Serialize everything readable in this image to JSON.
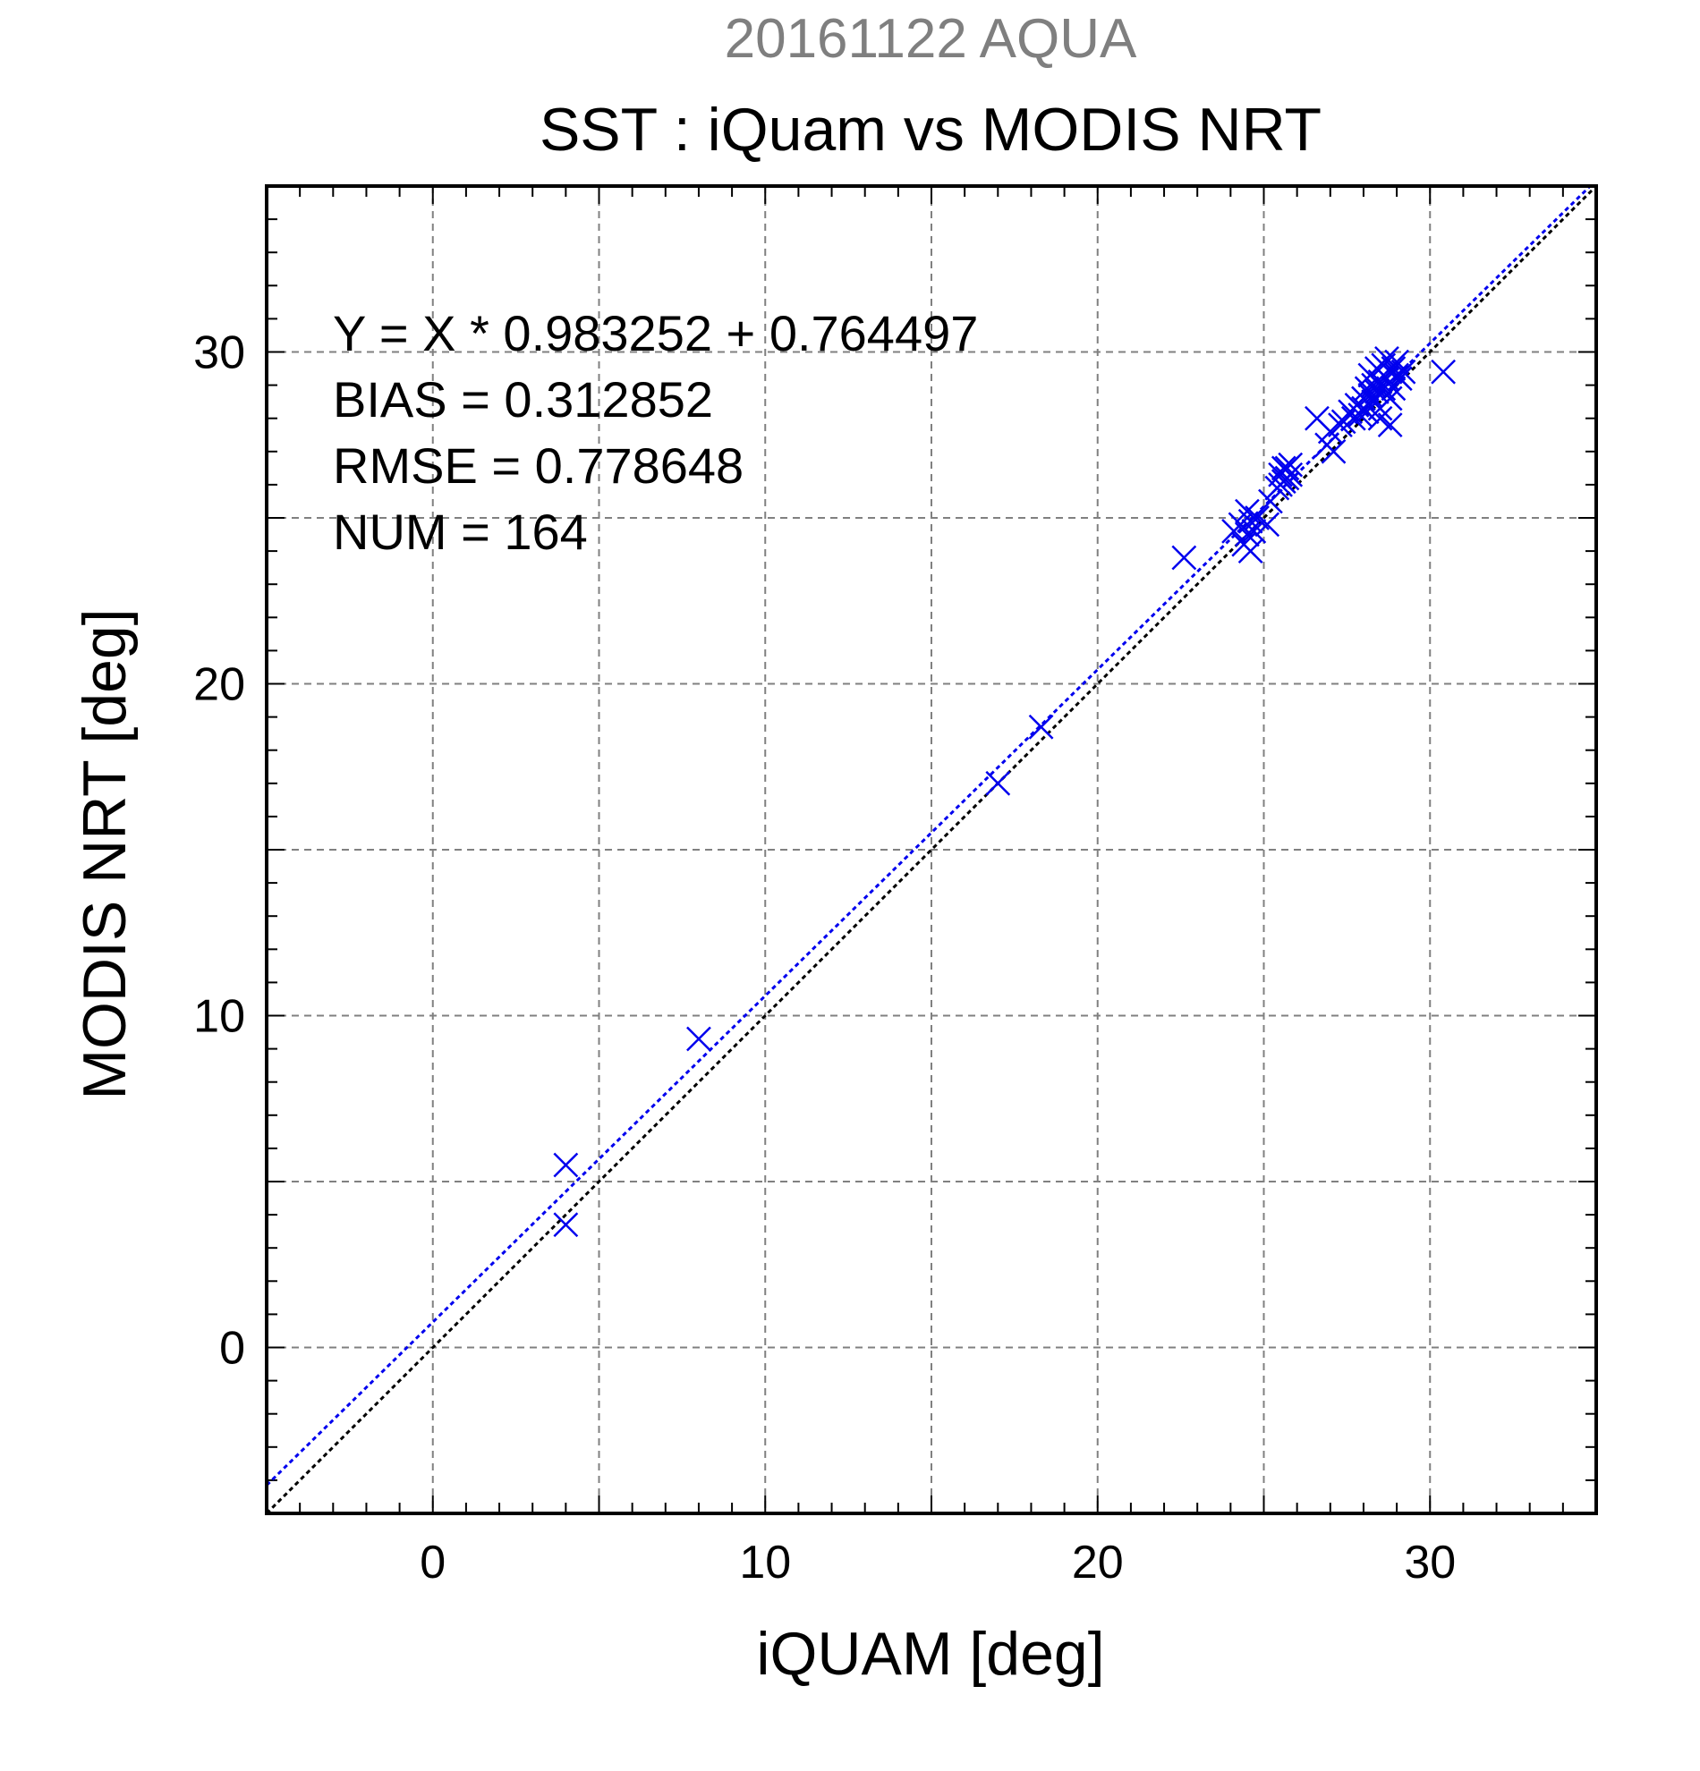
{
  "chart_data": {
    "type": "scatter",
    "suptitle": "20161122 AQUA",
    "title": "SST : iQuam vs MODIS NRT",
    "xlabel": "iQUAM [deg]",
    "ylabel": "MODIS NRT [deg]",
    "xlim": [
      -5,
      35
    ],
    "ylim": [
      -5,
      35
    ],
    "major_ticks": [
      0,
      10,
      20,
      30
    ],
    "major_tick_labels": [
      "0",
      "10",
      "20",
      "30"
    ],
    "grid_values": [
      0,
      5,
      10,
      15,
      20,
      25,
      30
    ],
    "minor_tick_step": 1,
    "grid": true,
    "marker": "x",
    "colors": {
      "points": "#0000ee",
      "fit_line": "#0000ee",
      "identity_line": "#000000",
      "suptitle": "#7f7f7f"
    },
    "stats": [
      "Y = X * 0.983252 + 0.764497",
      "BIAS = 0.312852",
      "RMSE = 0.778648",
      "NUM = 164"
    ],
    "fit": {
      "slope": 0.983252,
      "intercept": 0.764497
    },
    "identity": {
      "slope": 1,
      "intercept": 0
    },
    "x": [
      4.0,
      4.0,
      8.0,
      17.0,
      18.3,
      22.6,
      24.1,
      24.3,
      24.4,
      24.5,
      24.5,
      24.6,
      24.6,
      24.7,
      24.8,
      25.1,
      25.2,
      25.4,
      25.5,
      25.5,
      25.6,
      25.6,
      25.7,
      25.7,
      25.8,
      25.8,
      26.6,
      26.9,
      27.0,
      27.1,
      27.3,
      27.4,
      27.6,
      27.7,
      27.8,
      27.9,
      28.0,
      28.0,
      28.1,
      28.1,
      28.2,
      28.2,
      28.3,
      28.3,
      28.4,
      28.4,
      28.5,
      28.5,
      28.6,
      28.6,
      28.7,
      28.7,
      28.8,
      28.8,
      28.9,
      28.9,
      29.0,
      29.0,
      29.1,
      29.2,
      28.5,
      28.8,
      30.4
    ],
    "y": [
      5.5,
      3.7,
      9.3,
      17.0,
      18.7,
      23.8,
      24.6,
      24.8,
      24.2,
      24.5,
      25.2,
      24.0,
      24.9,
      24.6,
      25.0,
      24.8,
      25.5,
      25.9,
      26.3,
      26.0,
      26.5,
      26.1,
      26.2,
      26.5,
      26.3,
      26.6,
      28.0,
      27.2,
      27.6,
      27.0,
      27.8,
      27.9,
      28.2,
      28.0,
      28.4,
      28.1,
      28.3,
      28.6,
      28.9,
      28.2,
      28.7,
      29.3,
      29.0,
      28.5,
      28.8,
      29.5,
      29.1,
      28.3,
      29.6,
      28.9,
      29.2,
      29.8,
      28.6,
      29.4,
      29.5,
      28.9,
      29.3,
      29.7,
      29.2,
      29.4,
      28.0,
      27.8,
      29.4
    ]
  }
}
